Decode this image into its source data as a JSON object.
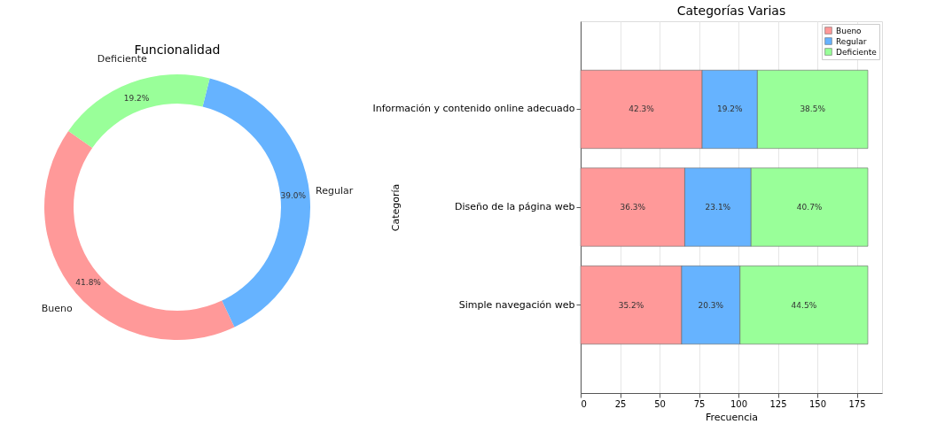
{
  "chart_data": [
    {
      "type": "donut",
      "title": "Funcionalidad",
      "categories": [
        "Bueno",
        "Regular",
        "Deficiente"
      ],
      "values": [
        41.8,
        39.0,
        19.2
      ],
      "colors": [
        "#ff9999",
        "#66b3ff",
        "#99ff99"
      ],
      "value_labels": [
        "41.8%",
        "39.0%",
        "19.2%"
      ]
    },
    {
      "type": "bar",
      "orientation": "horizontal",
      "stacked": true,
      "title": "Categorías Varias",
      "xlabel": "Frecuencia",
      "ylabel": "Categoría",
      "categories": [
        "Información y contenido online adecuado",
        "Diseño de la página web",
        "Simple navegación web"
      ],
      "series": [
        {
          "name": "Bueno",
          "color": "#ff9999",
          "values": [
            77,
            66,
            64
          ]
        },
        {
          "name": "Regular",
          "color": "#66b3ff",
          "values": [
            35,
            42,
            37
          ]
        },
        {
          "name": "Deficiente",
          "color": "#99ff99",
          "values": [
            70,
            74,
            81
          ]
        }
      ],
      "annotations": [
        "42.3%",
        "19.2%",
        "38.5%",
        "36.3%",
        "23.1%",
        "40.7%",
        "35.2%",
        "20.3%",
        "44.5%"
      ],
      "xlim": [
        0,
        191
      ],
      "xticks": [
        0,
        25,
        50,
        75,
        100,
        125,
        150,
        175
      ],
      "grid": "x",
      "legend": "top right"
    }
  ]
}
